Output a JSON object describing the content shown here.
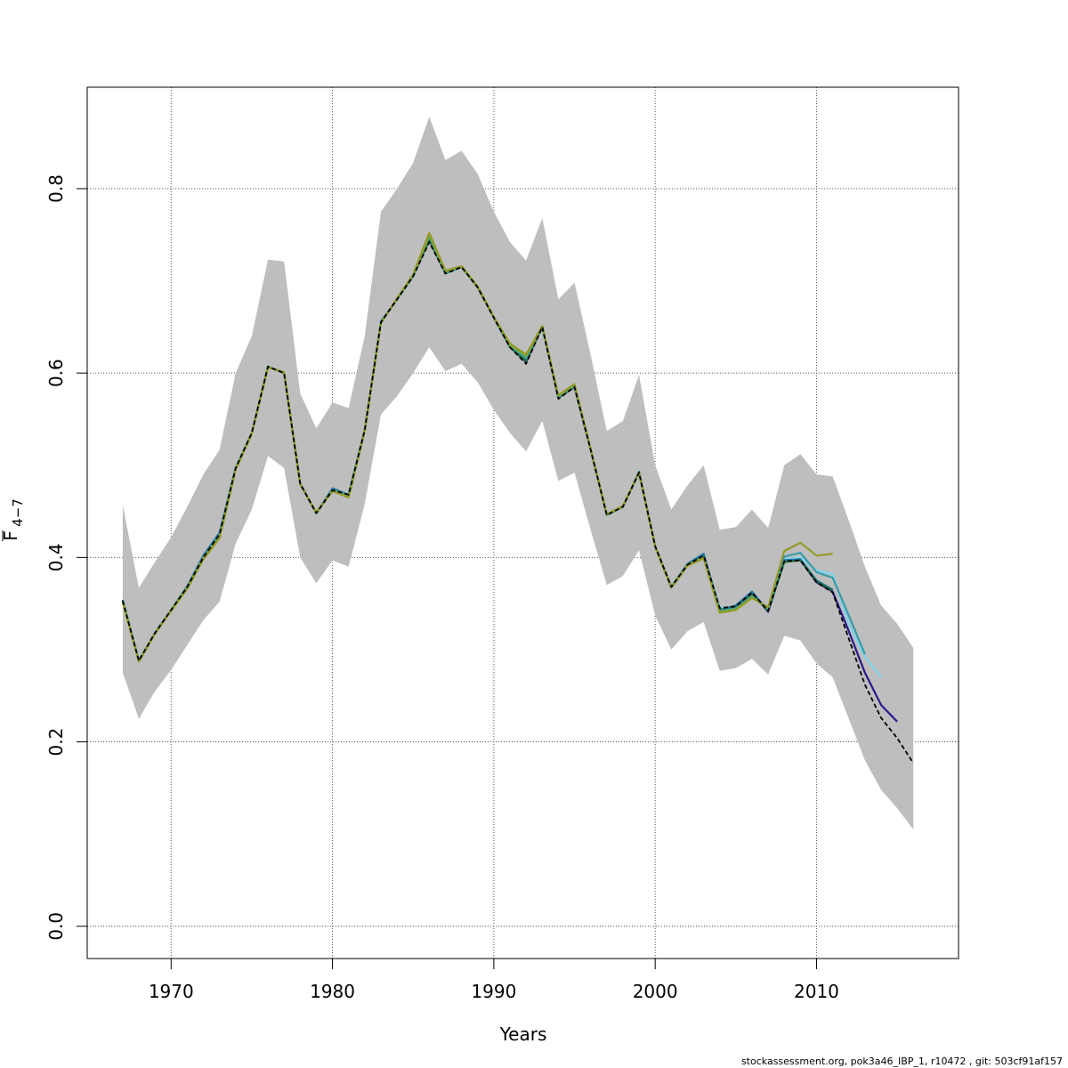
{
  "chart_data": {
    "type": "line",
    "xlabel": "Years",
    "ylabel": {
      "main": "F",
      "sub": "4−7"
    },
    "xlim": [
      1964.8,
      2018.8
    ],
    "ylim": [
      -0.035,
      0.91
    ],
    "xticks": [
      1970,
      1980,
      1990,
      2000,
      2010
    ],
    "yticks": [
      0.0,
      0.2,
      0.4,
      0.6,
      0.8
    ],
    "grid": true,
    "band": {
      "color": "#bebebe",
      "x": [
        1967,
        1968,
        1969,
        1970,
        1971,
        1972,
        1973,
        1974,
        1975,
        1976,
        1977,
        1978,
        1979,
        1980,
        1981,
        1982,
        1983,
        1984,
        1985,
        1986,
        1987,
        1988,
        1989,
        1990,
        1991,
        1992,
        1993,
        1994,
        1995,
        1996,
        1997,
        1998,
        1999,
        2000,
        2001,
        2002,
        2003,
        2004,
        2005,
        2006,
        2007,
        2008,
        2009,
        2010,
        2011,
        2012,
        2013,
        2014,
        2015,
        2016
      ],
      "lower": [
        0.275,
        0.225,
        0.255,
        0.278,
        0.305,
        0.332,
        0.352,
        0.415,
        0.452,
        0.51,
        0.497,
        0.4,
        0.372,
        0.397,
        0.39,
        0.458,
        0.555,
        0.575,
        0.6,
        0.628,
        0.602,
        0.61,
        0.59,
        0.56,
        0.535,
        0.515,
        0.548,
        0.483,
        0.492,
        0.43,
        0.37,
        0.38,
        0.408,
        0.337,
        0.3,
        0.32,
        0.33,
        0.277,
        0.28,
        0.29,
        0.273,
        0.315,
        0.31,
        0.285,
        0.27,
        0.225,
        0.18,
        0.148,
        0.128,
        0.105
      ],
      "upper": [
        0.457,
        0.367,
        0.395,
        0.422,
        0.455,
        0.49,
        0.517,
        0.6,
        0.64,
        0.723,
        0.721,
        0.578,
        0.54,
        0.568,
        0.562,
        0.64,
        0.775,
        0.8,
        0.828,
        0.878,
        0.831,
        0.841,
        0.816,
        0.775,
        0.742,
        0.722,
        0.768,
        0.68,
        0.698,
        0.62,
        0.537,
        0.548,
        0.598,
        0.5,
        0.452,
        0.478,
        0.5,
        0.43,
        0.433,
        0.452,
        0.432,
        0.5,
        0.512,
        0.49,
        0.488,
        0.44,
        0.39,
        0.348,
        0.328,
        0.302
      ]
    },
    "series": [
      {
        "color": "#000000",
        "dashed": true,
        "x": [
          1967,
          1968,
          1969,
          1970,
          1971,
          1972,
          1973,
          1974,
          1975,
          1976,
          1977,
          1978,
          1979,
          1980,
          1981,
          1982,
          1983,
          1984,
          1985,
          1986,
          1987,
          1988,
          1989,
          1990,
          1991,
          1992,
          1993,
          1994,
          1995,
          1996,
          1997,
          1998,
          1999,
          2000,
          2001,
          2002,
          2003,
          2004,
          2005,
          2006,
          2007,
          2008,
          2009,
          2010,
          2011,
          2012,
          2013,
          2014,
          2015,
          2016
        ],
        "y": [
          0.353,
          0.288,
          0.318,
          0.343,
          0.368,
          0.4,
          0.425,
          0.497,
          0.535,
          0.607,
          0.6,
          0.48,
          0.448,
          0.473,
          0.468,
          0.538,
          0.655,
          0.68,
          0.705,
          0.742,
          0.708,
          0.715,
          0.693,
          0.66,
          0.628,
          0.61,
          0.65,
          0.572,
          0.585,
          0.517,
          0.446,
          0.455,
          0.492,
          0.412,
          0.368,
          0.392,
          0.402,
          0.345,
          0.347,
          0.362,
          0.342,
          0.396,
          0.397,
          0.373,
          0.362,
          0.312,
          0.262,
          0.226,
          0.204,
          0.177
        ]
      },
      {
        "color": "#2c1a8c",
        "dashed": false,
        "x": [
          1967,
          1968,
          1969,
          1970,
          1971,
          1972,
          1973,
          1974,
          1975,
          1976,
          1977,
          1978,
          1979,
          1980,
          1981,
          1982,
          1983,
          1984,
          1985,
          1986,
          1987,
          1988,
          1989,
          1990,
          1991,
          1992,
          1993,
          1994,
          1995,
          1996,
          1997,
          1998,
          1999,
          2000,
          2001,
          2002,
          2003,
          2004,
          2005,
          2006,
          2007,
          2008,
          2009,
          2010,
          2011,
          2012,
          2013,
          2014,
          2015
        ],
        "y": [
          0.353,
          0.288,
          0.318,
          0.343,
          0.368,
          0.4,
          0.425,
          0.497,
          0.535,
          0.607,
          0.6,
          0.48,
          0.448,
          0.473,
          0.468,
          0.538,
          0.655,
          0.68,
          0.705,
          0.745,
          0.708,
          0.715,
          0.693,
          0.66,
          0.628,
          0.612,
          0.65,
          0.573,
          0.585,
          0.517,
          0.446,
          0.455,
          0.492,
          0.412,
          0.368,
          0.392,
          0.402,
          0.345,
          0.347,
          0.362,
          0.341,
          0.396,
          0.397,
          0.373,
          0.363,
          0.32,
          0.275,
          0.24,
          0.222
        ]
      },
      {
        "color": "#80d4ec",
        "dashed": false,
        "x": [
          1967,
          1968,
          1969,
          1970,
          1971,
          1972,
          1973,
          1974,
          1975,
          1976,
          1977,
          1978,
          1979,
          1980,
          1981,
          1982,
          1983,
          1984,
          1985,
          1986,
          1987,
          1988,
          1989,
          1990,
          1991,
          1992,
          1993,
          1994,
          1995,
          1996,
          1997,
          1998,
          1999,
          2000,
          2001,
          2002,
          2003,
          2004,
          2005,
          2006,
          2007,
          2008,
          2009,
          2010,
          2011,
          2012,
          2013,
          2014
        ],
        "y": [
          0.353,
          0.288,
          0.318,
          0.343,
          0.368,
          0.4,
          0.425,
          0.497,
          0.535,
          0.607,
          0.6,
          0.48,
          0.448,
          0.473,
          0.468,
          0.538,
          0.655,
          0.68,
          0.705,
          0.746,
          0.708,
          0.715,
          0.693,
          0.66,
          0.628,
          0.613,
          0.65,
          0.573,
          0.586,
          0.517,
          0.446,
          0.455,
          0.492,
          0.412,
          0.368,
          0.392,
          0.402,
          0.345,
          0.347,
          0.362,
          0.342,
          0.398,
          0.4,
          0.386,
          0.382,
          0.328,
          0.292,
          0.27
        ]
      },
      {
        "color": "#1f74a8",
        "dashed": false,
        "x": [
          1967,
          1968,
          1969,
          1970,
          1971,
          1972,
          1973,
          1974,
          1975,
          1976,
          1977,
          1978,
          1979,
          1980,
          1981,
          1982,
          1983,
          1984,
          1985,
          1986,
          1987,
          1988,
          1989,
          1990,
          1991,
          1992,
          1993,
          1994,
          1995,
          1996,
          1997,
          1998,
          1999,
          2000,
          2001,
          2002,
          2003,
          2004,
          2005,
          2006,
          2007,
          2008,
          2009,
          2010,
          2011
        ],
        "y": [
          0.354,
          0.288,
          0.318,
          0.343,
          0.369,
          0.402,
          0.427,
          0.497,
          0.535,
          0.607,
          0.6,
          0.48,
          0.448,
          0.475,
          0.468,
          0.538,
          0.656,
          0.68,
          0.705,
          0.747,
          0.709,
          0.715,
          0.693,
          0.66,
          0.63,
          0.614,
          0.65,
          0.574,
          0.586,
          0.518,
          0.446,
          0.455,
          0.493,
          0.412,
          0.368,
          0.393,
          0.404,
          0.343,
          0.348,
          0.363,
          0.342,
          0.397,
          0.398,
          0.375,
          0.365
        ]
      },
      {
        "color": "#1b6b3a",
        "dashed": false,
        "x": [
          1967,
          1968,
          1969,
          1970,
          1971,
          1972,
          1973,
          1974,
          1975,
          1976,
          1977,
          1978,
          1979,
          1980,
          1981,
          1982,
          1983,
          1984,
          1985,
          1986,
          1987,
          1988,
          1989,
          1990,
          1991,
          1992,
          1993,
          1994,
          1995,
          1996,
          1997,
          1998,
          1999,
          2000,
          2001,
          2002,
          2003,
          2004,
          2005,
          2006,
          2007,
          2008,
          2009,
          2010,
          2011
        ],
        "y": [
          0.353,
          0.288,
          0.318,
          0.343,
          0.368,
          0.4,
          0.425,
          0.497,
          0.535,
          0.607,
          0.6,
          0.48,
          0.448,
          0.473,
          0.468,
          0.538,
          0.655,
          0.68,
          0.705,
          0.744,
          0.708,
          0.715,
          0.693,
          0.66,
          0.628,
          0.613,
          0.65,
          0.573,
          0.585,
          0.517,
          0.446,
          0.455,
          0.492,
          0.412,
          0.368,
          0.392,
          0.401,
          0.343,
          0.346,
          0.36,
          0.342,
          0.395,
          0.397,
          0.374,
          0.364
        ]
      },
      {
        "color": "#3a9aa8",
        "dashed": false,
        "x": [
          1967,
          1968,
          1969,
          1970,
          1971,
          1972,
          1973,
          1974,
          1975,
          1976,
          1977,
          1978,
          1979,
          1980,
          1981,
          1982,
          1983,
          1984,
          1985,
          1986,
          1987,
          1988,
          1989,
          1990,
          1991,
          1992,
          1993,
          1994,
          1995,
          1996,
          1997,
          1998,
          1999,
          2000,
          2001,
          2002,
          2003,
          2004,
          2005,
          2006,
          2007,
          2008,
          2009,
          2010,
          2011,
          2012,
          2013
        ],
        "y": [
          0.353,
          0.288,
          0.318,
          0.343,
          0.368,
          0.4,
          0.425,
          0.497,
          0.535,
          0.607,
          0.6,
          0.48,
          0.448,
          0.473,
          0.468,
          0.538,
          0.655,
          0.68,
          0.705,
          0.748,
          0.708,
          0.715,
          0.693,
          0.66,
          0.63,
          0.616,
          0.65,
          0.574,
          0.586,
          0.517,
          0.446,
          0.455,
          0.492,
          0.412,
          0.368,
          0.392,
          0.4,
          0.342,
          0.345,
          0.358,
          0.344,
          0.401,
          0.405,
          0.384,
          0.378,
          0.337,
          0.295
        ]
      },
      {
        "color": "#6aa84f",
        "dashed": false,
        "x": [
          1967,
          1968,
          1969,
          1970,
          1971,
          1972,
          1973,
          1974,
          1975,
          1976,
          1977,
          1978,
          1979,
          1980,
          1981,
          1982,
          1983,
          1984,
          1985,
          1986,
          1987,
          1988,
          1989,
          1990,
          1991,
          1992,
          1993,
          1994,
          1995,
          1996,
          1997,
          1998,
          1999,
          2000,
          2001,
          2002,
          2003,
          2004,
          2005,
          2006,
          2007
        ],
        "y": [
          0.353,
          0.288,
          0.318,
          0.343,
          0.368,
          0.4,
          0.423,
          0.497,
          0.535,
          0.607,
          0.6,
          0.48,
          0.448,
          0.473,
          0.466,
          0.538,
          0.655,
          0.68,
          0.706,
          0.749,
          0.71,
          0.715,
          0.693,
          0.66,
          0.63,
          0.618,
          0.65,
          0.575,
          0.587,
          0.517,
          0.446,
          0.455,
          0.492,
          0.412,
          0.368,
          0.392,
          0.4,
          0.341,
          0.344,
          0.357,
          0.345
        ]
      },
      {
        "color": "#949a24",
        "dashed": false,
        "x": [
          1967,
          1968,
          1969,
          1970,
          1971,
          1972,
          1973,
          1974,
          1975,
          1976,
          1977,
          1978,
          1979,
          1980,
          1981,
          1982,
          1983,
          1984,
          1985,
          1986,
          1987,
          1988,
          1989,
          1990,
          1991,
          1992,
          1993,
          1994,
          1995,
          1996,
          1997,
          1998,
          1999,
          2000,
          2001,
          2002,
          2003,
          2004,
          2005,
          2006,
          2007,
          2008,
          2009,
          2010,
          2011
        ],
        "y": [
          0.351,
          0.287,
          0.317,
          0.342,
          0.366,
          0.398,
          0.421,
          0.495,
          0.534,
          0.606,
          0.601,
          0.479,
          0.449,
          0.472,
          0.465,
          0.537,
          0.654,
          0.681,
          0.707,
          0.752,
          0.711,
          0.716,
          0.694,
          0.661,
          0.632,
          0.62,
          0.651,
          0.576,
          0.588,
          0.518,
          0.447,
          0.456,
          0.492,
          0.411,
          0.367,
          0.391,
          0.399,
          0.34,
          0.343,
          0.356,
          0.346,
          0.407,
          0.416,
          0.402,
          0.404
        ]
      }
    ]
  },
  "footer": "stockassessment.org, pok3a46_IBP_1, r10472 , git: 503cf91af157"
}
